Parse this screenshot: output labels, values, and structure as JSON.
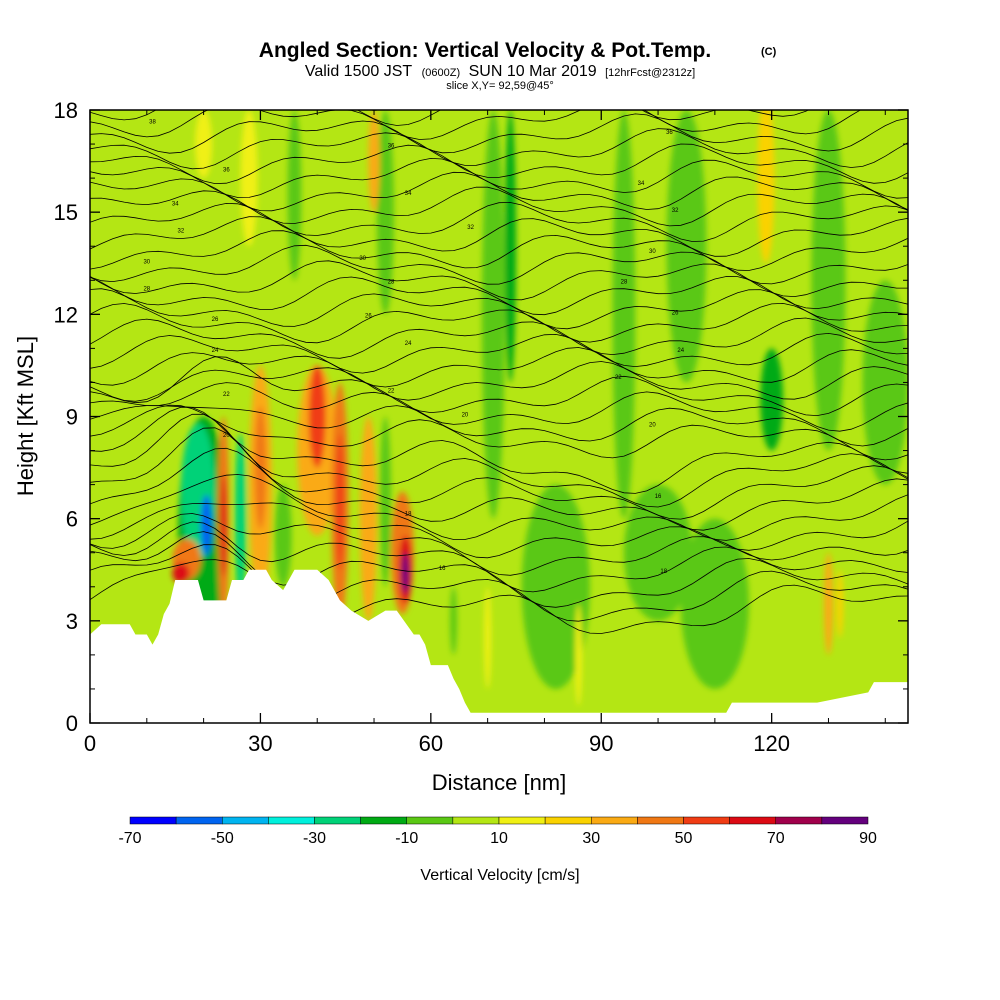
{
  "chart_data": {
    "type": "heatmap",
    "title_main": "Angled Section: Vertical Velocity & Pot.Temp.",
    "title_unit": "(C)",
    "subtitle_valid": "Valid 1500 JST",
    "subtitle_utc": "(0600Z)",
    "subtitle_date": "SUN 10 Mar 2019",
    "subtitle_fcst": "[12hrFcst@2312z]",
    "slice_label": "slice X,Y= 92,59@45°",
    "xlabel": "Distance [nm]",
    "ylabel": "Height [Kft MSL]",
    "xlim": [
      0,
      144
    ],
    "ylim": [
      0,
      18
    ],
    "x_ticks": [
      "0",
      "30",
      "60",
      "90",
      "120"
    ],
    "x_tick_values": [
      0,
      30,
      60,
      90,
      120
    ],
    "y_ticks": [
      "0",
      "3",
      "6",
      "9",
      "12",
      "15",
      "18"
    ],
    "y_tick_values": [
      0,
      3,
      6,
      9,
      12,
      15,
      18
    ],
    "colorbar": {
      "label": "Vertical Velocity [cm/s]",
      "levels": [
        -70,
        -60,
        -50,
        -40,
        -30,
        -20,
        -10,
        0,
        10,
        20,
        30,
        40,
        50,
        60,
        70,
        80,
        90
      ],
      "tick_labels": [
        "-70",
        "-50",
        "-30",
        "-10",
        "10",
        "30",
        "50",
        "70",
        "90"
      ],
      "tick_values": [
        -70,
        -50,
        -30,
        -10,
        10,
        30,
        50,
        70,
        90
      ],
      "colors": [
        "#0000ff",
        "#0064f0",
        "#00b4f0",
        "#00f0dc",
        "#00d278",
        "#00aa14",
        "#5ac814",
        "#b4e614",
        "#f0f014",
        "#fad200",
        "#faaa14",
        "#f07814",
        "#f03c14",
        "#dc0a14",
        "#a0004b",
        "#64007d"
      ]
    },
    "background_color": "#b4e614",
    "terrain": [
      [
        0,
        2.6
      ],
      [
        2,
        2.9
      ],
      [
        7,
        2.9
      ],
      [
        8,
        2.6
      ],
      [
        10,
        2.6
      ],
      [
        11,
        2.3
      ],
      [
        12,
        2.6
      ],
      [
        13,
        3.2
      ],
      [
        14,
        3.5
      ],
      [
        15,
        4.2
      ],
      [
        19,
        4.2
      ],
      [
        20,
        3.6
      ],
      [
        24,
        3.6
      ],
      [
        25,
        4.2
      ],
      [
        27,
        4.2
      ],
      [
        28,
        4.5
      ],
      [
        31,
        4.5
      ],
      [
        32,
        4.2
      ],
      [
        34,
        3.9
      ],
      [
        35,
        4.2
      ],
      [
        36,
        4.5
      ],
      [
        40,
        4.5
      ],
      [
        42,
        4.2
      ],
      [
        44,
        3.6
      ],
      [
        46,
        3.3
      ],
      [
        49,
        3.0
      ],
      [
        52,
        3.3
      ],
      [
        54,
        3.3
      ],
      [
        57,
        2.6
      ],
      [
        58,
        2.6
      ],
      [
        59,
        2.3
      ],
      [
        60,
        1.7
      ],
      [
        63,
        1.7
      ],
      [
        64,
        1.3
      ],
      [
        65,
        1.0
      ],
      [
        66,
        0.6
      ],
      [
        67,
        0.3
      ],
      [
        80,
        0.3
      ],
      [
        112,
        0.3
      ],
      [
        113,
        0.6
      ],
      [
        128,
        0.6
      ],
      [
        137,
        0.9
      ],
      [
        138,
        1.2
      ],
      [
        144,
        1.2
      ]
    ],
    "regions": [
      {
        "x": 20,
        "y": 5.5,
        "rx": 4.5,
        "ry": 3.5,
        "value": -20
      },
      {
        "x": 19,
        "y": 6.8,
        "rx": 3.0,
        "ry": 2.0,
        "value": -30
      },
      {
        "x": 20.5,
        "y": 5.8,
        "rx": 1.0,
        "ry": 0.9,
        "value": -60
      },
      {
        "x": 17,
        "y": 4.8,
        "rx": 2.5,
        "ry": 0.6,
        "value": 40
      },
      {
        "x": 16,
        "y": 4.4,
        "rx": 1.5,
        "ry": 0.3,
        "value": 60
      },
      {
        "x": 23.5,
        "y": 6.0,
        "rx": 1.0,
        "ry": 3.0,
        "value": 40
      },
      {
        "x": 23.5,
        "y": 5.8,
        "rx": 0.5,
        "ry": 1.5,
        "value": 60
      },
      {
        "x": 26.5,
        "y": 6.0,
        "rx": 1.0,
        "ry": 2.5,
        "value": -30
      },
      {
        "x": 30,
        "y": 7.0,
        "rx": 2.0,
        "ry": 3.5,
        "value": 30
      },
      {
        "x": 30,
        "y": 7.5,
        "rx": 1.0,
        "ry": 1.8,
        "value": 40
      },
      {
        "x": 34,
        "y": 5.5,
        "rx": 1.5,
        "ry": 1.5,
        "value": -10
      },
      {
        "x": 40,
        "y": 8.0,
        "rx": 3.5,
        "ry": 2.5,
        "value": 30
      },
      {
        "x": 40,
        "y": 9.0,
        "rx": 1.5,
        "ry": 1.5,
        "value": 50
      },
      {
        "x": 44,
        "y": 6.5,
        "rx": 1.5,
        "ry": 3.5,
        "value": 40
      },
      {
        "x": 44,
        "y": 6.5,
        "rx": 0.7,
        "ry": 2.0,
        "value": 50
      },
      {
        "x": 49,
        "y": 6.0,
        "rx": 1.5,
        "ry": 3.0,
        "value": 30
      },
      {
        "x": 52,
        "y": 6.5,
        "rx": 1.0,
        "ry": 2.5,
        "value": -10
      },
      {
        "x": 55,
        "y": 5.0,
        "rx": 2.0,
        "ry": 1.8,
        "value": 40
      },
      {
        "x": 55.5,
        "y": 4.5,
        "rx": 1.2,
        "ry": 1.0,
        "value": 60
      },
      {
        "x": 55.5,
        "y": 4.4,
        "rx": 0.6,
        "ry": 0.6,
        "value": 80
      },
      {
        "x": 71,
        "y": 12.0,
        "rx": 2.0,
        "ry": 6.0,
        "value": -10
      },
      {
        "x": 74,
        "y": 14.0,
        "rx": 1.0,
        "ry": 4.0,
        "value": -20
      },
      {
        "x": 52,
        "y": 15.0,
        "rx": 1.5,
        "ry": 3.0,
        "value": -10
      },
      {
        "x": 50,
        "y": 16.5,
        "rx": 1.0,
        "ry": 1.5,
        "value": 30
      },
      {
        "x": 36,
        "y": 15.5,
        "rx": 1.2,
        "ry": 2.5,
        "value": -10
      },
      {
        "x": 28,
        "y": 16.0,
        "rx": 1.5,
        "ry": 2.0,
        "value": 10
      },
      {
        "x": 20,
        "y": 17.0,
        "rx": 1.5,
        "ry": 1.0,
        "value": 10
      },
      {
        "x": 119,
        "y": 16.0,
        "rx": 1.5,
        "ry": 2.5,
        "value": 20
      },
      {
        "x": 105,
        "y": 14.0,
        "rx": 3.5,
        "ry": 4.0,
        "value": -10
      },
      {
        "x": 130,
        "y": 13.0,
        "rx": 3.0,
        "ry": 5.0,
        "value": -10
      },
      {
        "x": 94,
        "y": 12.0,
        "rx": 2.0,
        "ry": 6.0,
        "value": -10
      },
      {
        "x": 140,
        "y": 10.0,
        "rx": 4.0,
        "ry": 3.0,
        "value": -10
      },
      {
        "x": 120,
        "y": 9.5,
        "rx": 2.0,
        "ry": 1.5,
        "value": -20
      },
      {
        "x": 130,
        "y": 3.5,
        "rx": 0.8,
        "ry": 1.5,
        "value": 30
      },
      {
        "x": 132,
        "y": 3.5,
        "rx": 0.6,
        "ry": 1.0,
        "value": 20
      },
      {
        "x": 82,
        "y": 4.0,
        "rx": 6.0,
        "ry": 3.0,
        "value": -10
      },
      {
        "x": 100,
        "y": 5.0,
        "rx": 6.0,
        "ry": 2.0,
        "value": -10
      },
      {
        "x": 110,
        "y": 3.5,
        "rx": 6.0,
        "ry": 2.5,
        "value": -10
      },
      {
        "x": 86,
        "y": 2.0,
        "rx": 0.6,
        "ry": 1.5,
        "value": 10
      },
      {
        "x": 70,
        "y": 2.5,
        "rx": 0.6,
        "ry": 1.5,
        "value": 10
      },
      {
        "x": 64,
        "y": 3.0,
        "rx": 0.6,
        "ry": 1.0,
        "value": -10
      }
    ],
    "theta_contours": {
      "levels": [
        14,
        15,
        16,
        17,
        18,
        19,
        20,
        21,
        22,
        23,
        24,
        25,
        26,
        27,
        28,
        29,
        30,
        31,
        32,
        33,
        34,
        35,
        36,
        37,
        38,
        39,
        40,
        41,
        42,
        43,
        44,
        45,
        46,
        47,
        48,
        49,
        50
      ],
      "labels": [
        {
          "x": 62,
          "y": 4.5,
          "text": "16"
        },
        {
          "x": 101,
          "y": 4.4,
          "text": "18"
        },
        {
          "x": 56,
          "y": 6.1,
          "text": "18"
        },
        {
          "x": 100,
          "y": 6.6,
          "text": "16"
        },
        {
          "x": 24,
          "y": 8.4,
          "text": "20"
        },
        {
          "x": 66,
          "y": 9.0,
          "text": "20"
        },
        {
          "x": 99,
          "y": 8.7,
          "text": "20"
        },
        {
          "x": 24,
          "y": 9.6,
          "text": "22"
        },
        {
          "x": 53,
          "y": 9.7,
          "text": "22"
        },
        {
          "x": 93,
          "y": 10.1,
          "text": "22"
        },
        {
          "x": 22,
          "y": 10.9,
          "text": "24"
        },
        {
          "x": 56,
          "y": 11.1,
          "text": "24"
        },
        {
          "x": 104,
          "y": 10.9,
          "text": "24"
        },
        {
          "x": 22,
          "y": 11.8,
          "text": "26"
        },
        {
          "x": 49,
          "y": 11.9,
          "text": "26"
        },
        {
          "x": 103,
          "y": 12.0,
          "text": "26"
        },
        {
          "x": 10,
          "y": 12.7,
          "text": "28"
        },
        {
          "x": 53,
          "y": 12.9,
          "text": "28"
        },
        {
          "x": 94,
          "y": 12.9,
          "text": "28"
        },
        {
          "x": 10,
          "y": 13.5,
          "text": "30"
        },
        {
          "x": 48,
          "y": 13.6,
          "text": "30"
        },
        {
          "x": 99,
          "y": 13.8,
          "text": "30"
        },
        {
          "x": 16,
          "y": 14.4,
          "text": "32"
        },
        {
          "x": 67,
          "y": 14.5,
          "text": "32"
        },
        {
          "x": 103,
          "y": 15.0,
          "text": "32"
        },
        {
          "x": 15,
          "y": 15.2,
          "text": "34"
        },
        {
          "x": 56,
          "y": 15.5,
          "text": "34"
        },
        {
          "x": 97,
          "y": 15.8,
          "text": "34"
        },
        {
          "x": 24,
          "y": 16.2,
          "text": "36"
        },
        {
          "x": 53,
          "y": 16.9,
          "text": "36"
        },
        {
          "x": 102,
          "y": 17.3,
          "text": "36"
        },
        {
          "x": 11,
          "y": 17.6,
          "text": "38"
        }
      ]
    }
  }
}
